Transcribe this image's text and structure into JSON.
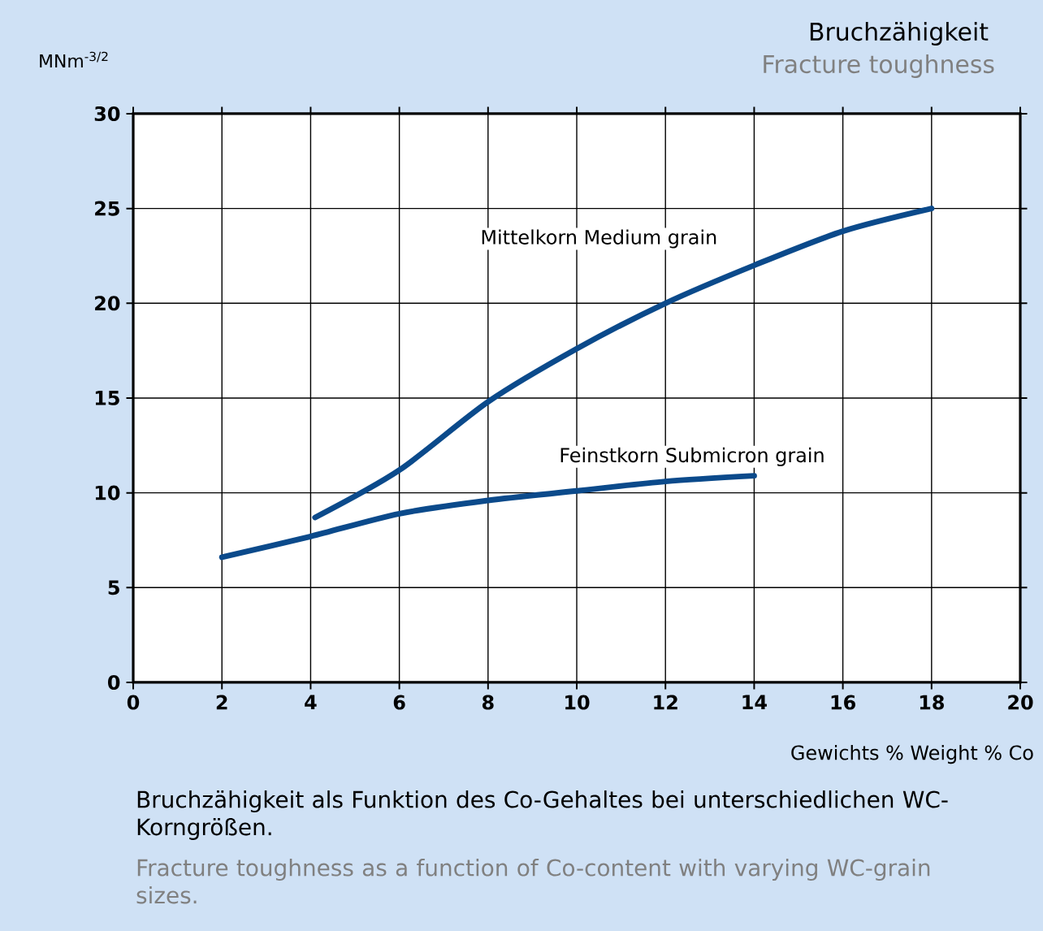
{
  "chart_data": {
    "type": "line",
    "title": "Bruchzähigkeit",
    "subtitle": "Fracture toughness",
    "xlabel": "Gewichts %  Weight % Co",
    "ylabel": "MNm$^{-3/2}$",
    "xlim": [
      0,
      20
    ],
    "ylim": [
      0,
      30
    ],
    "xticks": [
      0,
      2,
      4,
      6,
      8,
      10,
      12,
      14,
      16,
      18,
      20
    ],
    "yticks": [
      0,
      5,
      10,
      15,
      20,
      25,
      30
    ],
    "grid": true,
    "marker": "none",
    "line_style": "solid",
    "series": [
      {
        "name": "Mittelkorn Medium grain",
        "color": "#0b4a8b",
        "x": [
          4.1,
          6,
          8,
          10,
          12,
          14,
          16,
          18
        ],
        "values": [
          8.7,
          11.2,
          14.8,
          17.6,
          20.0,
          22.0,
          23.8,
          25.0
        ]
      },
      {
        "name": "Feinstkorn Submicron grain",
        "color": "#0b4a8b",
        "x": [
          2,
          4,
          6,
          8,
          10,
          12,
          14
        ],
        "values": [
          6.6,
          7.7,
          8.9,
          9.6,
          10.1,
          10.6,
          10.9
        ]
      }
    ],
    "annotations": [
      "Bruchzähigkeit als Funktion des Co-Gehaltes bei unterschiedlichen WC-Korngrößen.",
      "Fracture toughness as a function of Co-content with varying WC-grain sizes."
    ]
  }
}
